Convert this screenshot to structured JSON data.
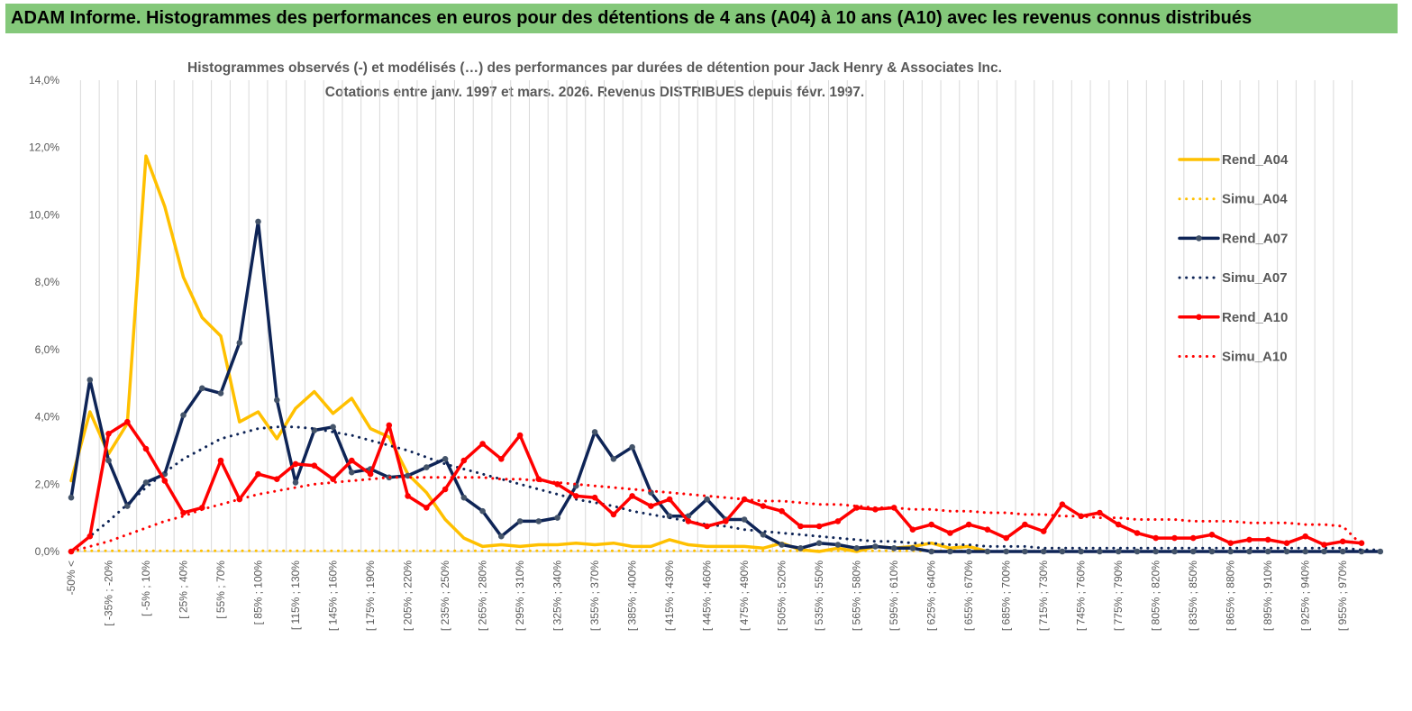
{
  "header": {
    "title": "ADAM Informe. Histogrammes des performances en euros pour des détentions de 4 ans (A04) à 10 ans (A10) avec les revenus connus distribués"
  },
  "colors": {
    "banner": "#84c87a",
    "A04": "#ffc000",
    "A07": "#0e2456",
    "A10": "#ff0000",
    "grid": "#d9d9d9",
    "text": "#595959"
  },
  "chart_data": {
    "type": "line",
    "title": "Histogrammes observés (-) et modélisés (…) des performances par durées de détention pour Jack Henry & Associates Inc.",
    "subtitle": "Cotations entre janv. 1997 et mars. 2026. Revenus DISTRIBUES depuis févr. 1997.",
    "xlabel": "",
    "ylabel": "",
    "ylim": [
      0,
      14
    ],
    "ytick_labels": [
      "0,0%",
      "2,0%",
      "4,0%",
      "6,0%",
      "8,0%",
      "10,0%",
      "12,0%",
      "14,0%"
    ],
    "legend_position": "right",
    "x_tick_labels": [
      "-50% <",
      "[ -35% ; -20%",
      "[ -5% ; 10%",
      "[ 25% ; 40%",
      "[ 55% ; 70%",
      "[ 85% ; 100%",
      "[ 115% ; 130%",
      "[ 145% ; 160%",
      "[ 175% ; 190%",
      "[ 205% ; 220%",
      "[ 235% ; 250%",
      "[ 265% ; 280%",
      "[ 295% ; 310%",
      "[ 325% ; 340%",
      "[ 355% ; 370%",
      "[ 385% ; 400%",
      "[ 415% ; 430%",
      "[ 445% ; 460%",
      "[ 475% ; 490%",
      "[ 505% ; 520%",
      "[ 535% ; 550%",
      "[ 565% ; 580%",
      "[ 595% ; 610%",
      "[ 625% ; 640%",
      "[ 655% ; 670%",
      "[ 685% ; 700%",
      "[ 715% ; 730%",
      "[ 745% ; 760%",
      "[ 775% ; 790%",
      "[ 805% ; 820%",
      "[ 835% ; 850%",
      "[ 865% ; 880%",
      "[ 895% ; 910%",
      "[ 925% ; 940%",
      "[ 955% ; 970%"
    ],
    "series": [
      {
        "name": "Rend_A04",
        "style": "solid",
        "markers": false,
        "color": "#ffc000",
        "values": [
          2.1,
          4.15,
          2.9,
          3.8,
          11.75,
          10.25,
          8.15,
          6.95,
          6.4,
          3.85,
          4.15,
          3.35,
          4.25,
          4.75,
          4.1,
          4.55,
          3.65,
          3.4,
          2.3,
          1.75,
          0.95,
          0.4,
          0.15,
          0.2,
          0.15,
          0.2,
          0.2,
          0.25,
          0.2,
          0.25,
          0.15,
          0.15,
          0.35,
          0.2,
          0.15,
          0.15,
          0.15,
          0.1,
          0.25,
          0.05,
          0.0,
          0.1,
          0.0,
          0.15,
          0.1,
          0.15,
          0.25,
          0.1,
          0.15,
          0.0
        ]
      },
      {
        "name": "Simu_A04",
        "style": "dotted",
        "markers": false,
        "color": "#ffc000",
        "values": [
          0.02,
          0.02,
          0.02,
          0.02,
          0.02,
          0.02,
          0.02,
          0.02,
          0.02,
          0.02,
          0.02,
          0.02,
          0.02,
          0.02,
          0.02,
          0.02,
          0.02,
          0.02,
          0.02,
          0.02,
          0.02,
          0.02,
          0.02,
          0.02,
          0.02,
          0.02,
          0.02,
          0.02,
          0.02,
          0.02,
          0.02,
          0.02,
          0.02,
          0.02,
          0.02,
          0.02,
          0.02,
          0.02,
          0.02,
          0.02,
          0.02,
          0.02,
          0.02,
          0.02,
          0.02,
          0.02,
          0.02,
          0.02,
          0.02,
          0.02
        ]
      },
      {
        "name": "Rend_A07",
        "style": "solid",
        "markers": true,
        "color": "#0e2456",
        "values": [
          1.6,
          5.1,
          2.7,
          1.35,
          2.05,
          2.3,
          4.05,
          4.85,
          4.7,
          6.2,
          9.8,
          4.5,
          2.05,
          3.6,
          3.7,
          2.35,
          2.45,
          2.2,
          2.25,
          2.5,
          2.75,
          1.6,
          1.2,
          0.45,
          0.9,
          0.9,
          1.0,
          1.95,
          3.55,
          2.75,
          3.1,
          1.75,
          1.05,
          1.05,
          1.55,
          0.95,
          0.95,
          0.5,
          0.2,
          0.1,
          0.25,
          0.2,
          0.1,
          0.15,
          0.1,
          0.1,
          0.0,
          0.0,
          0.0,
          0.0,
          0.0,
          0.0,
          0.0,
          0.0,
          0.0,
          0.0,
          0.0,
          0.0,
          0.0,
          0.0,
          0.0,
          0.0,
          0.0,
          0.0,
          0.0,
          0.0,
          0.0,
          0.0,
          0.0,
          0.0,
          0.0
        ]
      },
      {
        "name": "Simu_A07",
        "style": "dotted",
        "markers": false,
        "color": "#0e2456",
        "values": [
          0.0,
          0.45,
          0.9,
          1.4,
          1.9,
          2.35,
          2.75,
          3.05,
          3.35,
          3.5,
          3.65,
          3.7,
          3.7,
          3.65,
          3.55,
          3.45,
          3.3,
          3.15,
          3.0,
          2.8,
          2.6,
          2.45,
          2.3,
          2.15,
          2.0,
          1.85,
          1.7,
          1.55,
          1.45,
          1.35,
          1.2,
          1.1,
          1.0,
          0.9,
          0.8,
          0.75,
          0.65,
          0.6,
          0.55,
          0.5,
          0.45,
          0.4,
          0.35,
          0.3,
          0.3,
          0.25,
          0.25,
          0.2,
          0.2,
          0.15,
          0.15,
          0.15,
          0.1,
          0.1,
          0.1,
          0.1,
          0.1,
          0.1,
          0.1,
          0.1,
          0.1,
          0.1,
          0.1,
          0.1,
          0.1,
          0.1,
          0.1,
          0.1,
          0.1,
          0.05,
          0.05
        ]
      },
      {
        "name": "Rend_A10",
        "style": "solid",
        "markers": true,
        "color": "#ff0000",
        "values": [
          0.0,
          0.45,
          3.5,
          3.85,
          3.05,
          2.1,
          1.15,
          1.3,
          2.7,
          1.55,
          2.3,
          2.15,
          2.6,
          2.55,
          2.15,
          2.7,
          2.3,
          3.75,
          1.65,
          1.3,
          1.85,
          2.7,
          3.2,
          2.75,
          3.45,
          2.15,
          2.0,
          1.65,
          1.6,
          1.1,
          1.65,
          1.35,
          1.55,
          0.9,
          0.75,
          0.9,
          1.55,
          1.35,
          1.2,
          0.75,
          0.75,
          0.9,
          1.3,
          1.25,
          1.3,
          0.65,
          0.8,
          0.55,
          0.8,
          0.65,
          0.4,
          0.8,
          0.6,
          1.4,
          1.05,
          1.15,
          0.8,
          0.55,
          0.4,
          0.4,
          0.4,
          0.5,
          0.25,
          0.35,
          0.35,
          0.25,
          0.45,
          0.2,
          0.3,
          0.25
        ]
      },
      {
        "name": "Simu_A10",
        "style": "dotted",
        "markers": false,
        "color": "#ff0000",
        "values": [
          0.0,
          0.15,
          0.3,
          0.5,
          0.7,
          0.9,
          1.05,
          1.25,
          1.4,
          1.55,
          1.7,
          1.8,
          1.9,
          2.0,
          2.05,
          2.1,
          2.15,
          2.2,
          2.2,
          2.2,
          2.2,
          2.2,
          2.2,
          2.15,
          2.15,
          2.1,
          2.05,
          2.0,
          1.95,
          1.9,
          1.85,
          1.8,
          1.75,
          1.7,
          1.65,
          1.6,
          1.55,
          1.5,
          1.5,
          1.45,
          1.4,
          1.4,
          1.35,
          1.3,
          1.3,
          1.25,
          1.25,
          1.2,
          1.2,
          1.15,
          1.15,
          1.1,
          1.1,
          1.05,
          1.05,
          1.0,
          1.0,
          0.95,
          0.95,
          0.95,
          0.9,
          0.9,
          0.9,
          0.85,
          0.85,
          0.85,
          0.8,
          0.8,
          0.75,
          0.2
        ]
      }
    ]
  }
}
